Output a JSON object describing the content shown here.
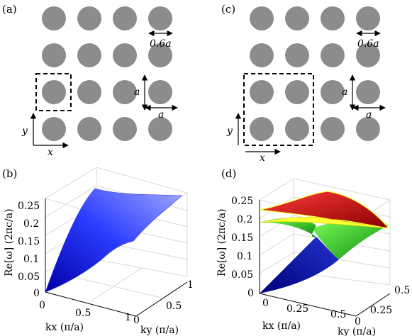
{
  "figure": {
    "colors": {
      "rod": "#8c8c8c",
      "axis": "#000000",
      "grid": "#d9d9d9",
      "dash": "#000000"
    },
    "panel_a": {
      "label": "(a)",
      "rod_label": "0.6a",
      "lattice_label_vertical": "a",
      "lattice_label_horizontal": "a",
      "axis_x": "x",
      "axis_y": "y"
    },
    "panel_c": {
      "label": "(c)",
      "rod_label": "0.6a",
      "lattice_label_vertical": "a",
      "lattice_label_horizontal": "a",
      "axis_x": "x",
      "axis_y": "y"
    },
    "panel_b": {
      "label": "(b)",
      "zlabel": "Re[ω] (2πc/a)",
      "z_ticks": [
        "0.25",
        "0.2",
        "0.15",
        "0.1",
        "0.05",
        "0"
      ],
      "kx_label": "kx (π/a)",
      "kx_ticks": [
        "0",
        "0.5",
        "1"
      ],
      "ky_label": "ky (π/a)",
      "ky_ticks": [
        "0",
        "0.5",
        "1"
      ],
      "surface_color": "#2a32e0"
    },
    "panel_d": {
      "label": "(d)",
      "zlabel": "Re[ω] (2πc/a)",
      "z_ticks": [
        "0.25",
        "0.2",
        "0.15",
        "0.1",
        "0.05",
        "0"
      ],
      "kx_label": "kx (π/a)",
      "kx_ticks": [
        "0",
        "0.25",
        "0.5"
      ],
      "ky_label": "ky (π/a)",
      "ky_ticks": [
        "0",
        "0.25",
        "0.5"
      ],
      "band_colors": [
        "#1a1ab0",
        "#22cc22",
        "#ffff33",
        "#dd1111"
      ]
    }
  }
}
